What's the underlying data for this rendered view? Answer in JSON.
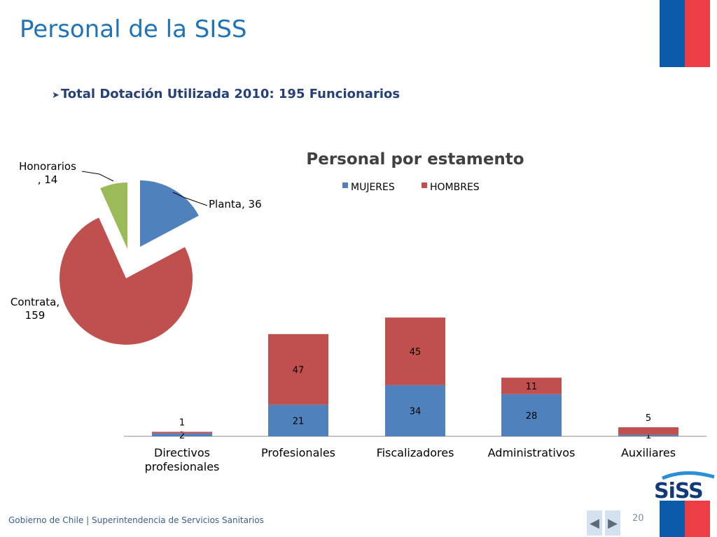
{
  "slide": {
    "title": "Personal de la SISS",
    "bullet": "Total Dotación Utilizada 2010: 195 Funcionarios",
    "footer": "Gobierno de Chile | Superintendencia de Servicios Sanitarios",
    "page_number": "20",
    "logo_text": "SiSS",
    "nav_prev_icon": "triangle-left-icon",
    "nav_next_icon": "triangle-right-icon"
  },
  "chart_data": [
    {
      "type": "pie",
      "title": "",
      "slices": [
        {
          "label": "Planta",
          "value": 36,
          "color": "#4f81bd"
        },
        {
          "label": "Contrata",
          "value": 159,
          "color": "#c0504d"
        },
        {
          "label": "Honorarios",
          "value": 14,
          "color": "#9bbb59"
        }
      ],
      "data_labels": [
        "Planta, 36",
        "Contrata,",
        "159",
        "Honorarios",
        ", 14"
      ]
    },
    {
      "type": "bar",
      "stacked": true,
      "title": "Personal por estamento",
      "categories": [
        "Directivos profesionales",
        "Profesionales",
        "Fiscalizadores",
        "Administrativos",
        "Auxiliares"
      ],
      "category_lines": [
        [
          "Directivos",
          "profesionales"
        ],
        [
          "Profesionales"
        ],
        [
          "Fiscalizadores"
        ],
        [
          "Administrativos"
        ],
        [
          "Auxiliares"
        ]
      ],
      "series": [
        {
          "name": "MUJERES",
          "values": [
            2,
            21,
            34,
            28,
            1
          ],
          "color": "#4f81bd"
        },
        {
          "name": "HOMBRES",
          "values": [
            1,
            47,
            45,
            11,
            5
          ],
          "color": "#c0504d"
        }
      ],
      "legend_position": "top",
      "grid": false
    }
  ]
}
